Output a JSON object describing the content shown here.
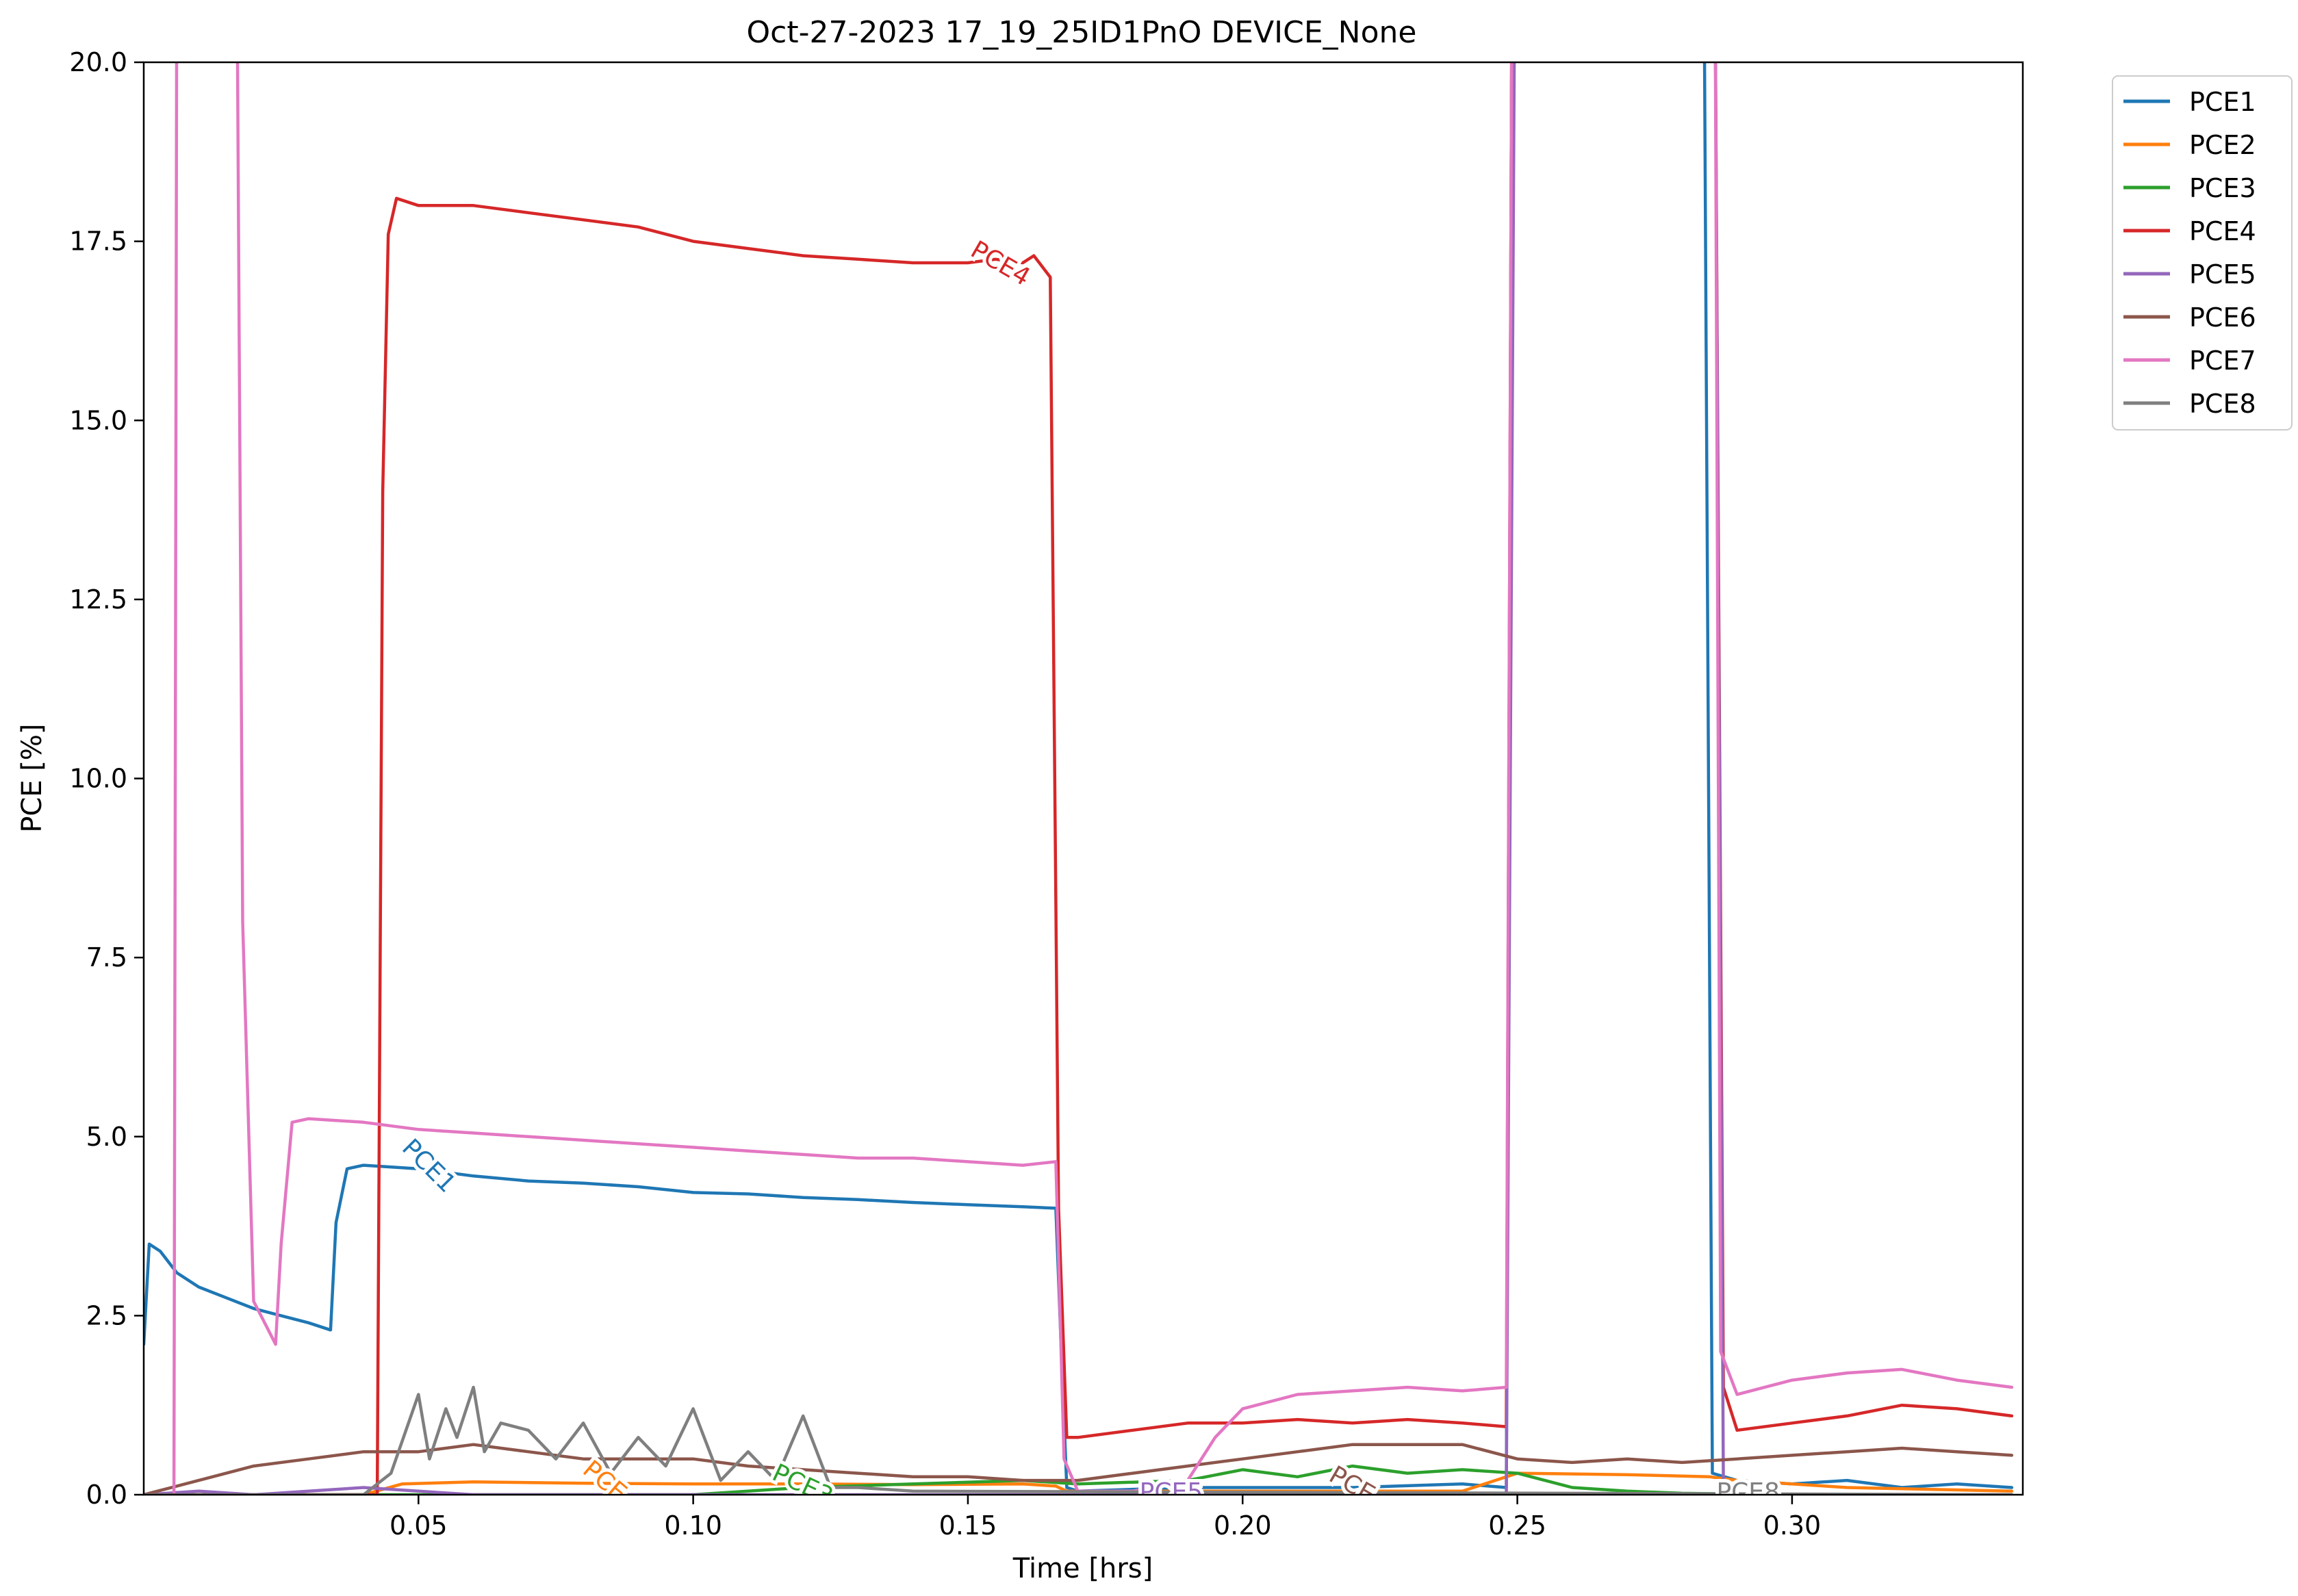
{
  "chart_data": {
    "type": "line",
    "title": "Oct-27-2023 17_19_25ID1PnO DEVICE_None",
    "xlabel": "Time [hrs]",
    "ylabel": "PCE [%]",
    "xlim": [
      0.0,
      0.342
    ],
    "ylim": [
      0,
      20
    ],
    "x_ticks": [
      0.05,
      0.1,
      0.15,
      0.2,
      0.25,
      0.3
    ],
    "x_tick_labels": [
      "0.05",
      "0.10",
      "0.15",
      "0.20",
      "0.25",
      "0.30"
    ],
    "y_ticks": [
      0,
      2.5,
      5,
      7.5,
      10,
      12.5,
      15,
      17.5,
      20
    ],
    "y_tick_labels": [
      "0.0",
      "2.5",
      "5.0",
      "7.5",
      "10.0",
      "12.5",
      "15.0",
      "17.5",
      "20.0"
    ],
    "grid": false,
    "legend_position": "outside-top-right",
    "series": [
      {
        "name": "PCE1",
        "color": "#1f77b4",
        "x": [
          0.0,
          0.001,
          0.003,
          0.006,
          0.01,
          0.015,
          0.02,
          0.025,
          0.03,
          0.034,
          0.035,
          0.037,
          0.04,
          0.05,
          0.06,
          0.07,
          0.08,
          0.09,
          0.1,
          0.11,
          0.12,
          0.13,
          0.14,
          0.15,
          0.16,
          0.166,
          0.167,
          0.168,
          0.17,
          0.19,
          0.22,
          0.24,
          0.248,
          0.249,
          0.25,
          0.26,
          0.27,
          0.284,
          0.2855,
          0.29,
          0.3,
          0.31,
          0.32,
          0.33,
          0.34
        ],
        "y": [
          2.1,
          3.5,
          3.4,
          3.1,
          2.9,
          2.75,
          2.6,
          2.5,
          2.4,
          2.3,
          3.8,
          4.55,
          4.6,
          4.55,
          4.45,
          4.38,
          4.35,
          4.3,
          4.22,
          4.2,
          4.15,
          4.12,
          4.08,
          4.05,
          4.02,
          4.0,
          2.0,
          0.1,
          0.05,
          0.1,
          0.1,
          0.15,
          0.1,
          21,
          21,
          21,
          21,
          21,
          0.3,
          0.2,
          0.15,
          0.2,
          0.1,
          0.15,
          0.1
        ]
      },
      {
        "name": "PCE2",
        "color": "#ff7f0e",
        "x": [
          0.0,
          0.04,
          0.047,
          0.06,
          0.08,
          0.1,
          0.12,
          0.14,
          0.16,
          0.166,
          0.168,
          0.2,
          0.24,
          0.25,
          0.27,
          0.285,
          0.29,
          0.31,
          0.34
        ],
        "y": [
          0.0,
          0.0,
          0.15,
          0.18,
          0.16,
          0.15,
          0.15,
          0.14,
          0.15,
          0.12,
          0.05,
          0.05,
          0.05,
          0.3,
          0.28,
          0.25,
          0.2,
          0.1,
          0.05
        ]
      },
      {
        "name": "PCE3",
        "color": "#2ca02c",
        "x": [
          0.0,
          0.1,
          0.12,
          0.14,
          0.16,
          0.17,
          0.19,
          0.2,
          0.21,
          0.22,
          0.23,
          0.24,
          0.25,
          0.26,
          0.27,
          0.28,
          0.3,
          0.34
        ],
        "y": [
          0.0,
          0.0,
          0.1,
          0.15,
          0.2,
          0.15,
          0.2,
          0.35,
          0.25,
          0.4,
          0.3,
          0.35,
          0.3,
          0.1,
          0.05,
          0.02,
          0.0,
          0.0
        ]
      },
      {
        "name": "PCE4",
        "color": "#d62728",
        "x": [
          0.0,
          0.0425,
          0.0435,
          0.0445,
          0.046,
          0.05,
          0.06,
          0.07,
          0.08,
          0.09,
          0.1,
          0.11,
          0.12,
          0.13,
          0.14,
          0.15,
          0.155,
          0.16,
          0.162,
          0.165,
          0.1665,
          0.168,
          0.17,
          0.18,
          0.19,
          0.2,
          0.21,
          0.22,
          0.23,
          0.24,
          0.248,
          0.249,
          0.25,
          0.26,
          0.27,
          0.286,
          0.2875,
          0.29,
          0.3,
          0.31,
          0.32,
          0.33,
          0.34
        ],
        "y": [
          0.0,
          0.0,
          14.0,
          17.6,
          18.1,
          18.0,
          18.0,
          17.9,
          17.8,
          17.7,
          17.5,
          17.4,
          17.3,
          17.25,
          17.2,
          17.2,
          17.25,
          17.2,
          17.3,
          17.0,
          4.0,
          0.8,
          0.8,
          0.9,
          1.0,
          1.0,
          1.05,
          1.0,
          1.05,
          1.0,
          0.95,
          21,
          21,
          21,
          21,
          21,
          1.5,
          0.9,
          1.0,
          1.1,
          1.25,
          1.2,
          1.1
        ]
      },
      {
        "name": "PCE5",
        "color": "#9467bd",
        "x": [
          0.0,
          0.01,
          0.02,
          0.03,
          0.04,
          0.05,
          0.06,
          0.166,
          0.17,
          0.248,
          0.2495,
          0.25,
          0.26,
          0.27,
          0.286,
          0.2875,
          0.29,
          0.34
        ],
        "y": [
          0.0,
          0.05,
          0.0,
          0.05,
          0.1,
          0.05,
          0.0,
          0.0,
          0.0,
          0.0,
          21,
          21,
          21,
          21,
          21,
          0.1,
          0.0,
          0.0
        ]
      },
      {
        "name": "PCE6",
        "color": "#8c564b",
        "x": [
          0.0,
          0.01,
          0.02,
          0.03,
          0.04,
          0.05,
          0.06,
          0.07,
          0.08,
          0.09,
          0.1,
          0.11,
          0.12,
          0.13,
          0.14,
          0.15,
          0.16,
          0.17,
          0.18,
          0.19,
          0.2,
          0.21,
          0.22,
          0.23,
          0.24,
          0.25,
          0.26,
          0.27,
          0.28,
          0.29,
          0.3,
          0.31,
          0.32,
          0.33,
          0.34
        ],
        "y": [
          0.0,
          0.2,
          0.4,
          0.5,
          0.6,
          0.6,
          0.7,
          0.6,
          0.5,
          0.5,
          0.5,
          0.4,
          0.35,
          0.3,
          0.25,
          0.25,
          0.2,
          0.2,
          0.3,
          0.4,
          0.5,
          0.6,
          0.7,
          0.7,
          0.7,
          0.5,
          0.45,
          0.5,
          0.45,
          0.5,
          0.55,
          0.6,
          0.65,
          0.6,
          0.55
        ]
      },
      {
        "name": "PCE7",
        "color": "#e377c2",
        "x": [
          0.0,
          0.0055,
          0.006,
          0.0075,
          0.017,
          0.018,
          0.02,
          0.022,
          0.024,
          0.025,
          0.027,
          0.03,
          0.04,
          0.05,
          0.06,
          0.07,
          0.08,
          0.09,
          0.1,
          0.11,
          0.12,
          0.13,
          0.14,
          0.15,
          0.16,
          0.166,
          0.1675,
          0.17,
          0.18,
          0.19,
          0.195,
          0.2,
          0.21,
          0.22,
          0.23,
          0.24,
          0.248,
          0.249,
          0.25,
          0.26,
          0.27,
          0.286,
          0.287,
          0.29,
          0.3,
          0.31,
          0.32,
          0.33,
          0.34
        ],
        "y": [
          0.0,
          0.0,
          21,
          21,
          21,
          8.0,
          2.7,
          2.4,
          2.1,
          3.5,
          5.2,
          5.25,
          5.2,
          5.1,
          5.05,
          5.0,
          4.95,
          4.9,
          4.85,
          4.8,
          4.75,
          4.7,
          4.7,
          4.65,
          4.6,
          4.65,
          0.5,
          0.05,
          0.05,
          0.2,
          0.8,
          1.2,
          1.4,
          1.45,
          1.5,
          1.45,
          1.5,
          21,
          21,
          21,
          21,
          21,
          2.0,
          1.4,
          1.6,
          1.7,
          1.75,
          1.6,
          1.5
        ]
      },
      {
        "name": "PCE8",
        "color": "#7f7f7f",
        "x": [
          0.0,
          0.04,
          0.045,
          0.05,
          0.052,
          0.055,
          0.057,
          0.06,
          0.062,
          0.065,
          0.07,
          0.075,
          0.08,
          0.085,
          0.09,
          0.095,
          0.1,
          0.105,
          0.11,
          0.115,
          0.12,
          0.125,
          0.13,
          0.14,
          0.34
        ],
        "y": [
          0.0,
          0.0,
          0.3,
          1.4,
          0.5,
          1.2,
          0.8,
          1.5,
          0.6,
          1.0,
          0.9,
          0.5,
          1.0,
          0.3,
          0.8,
          0.4,
          1.2,
          0.2,
          0.6,
          0.2,
          1.1,
          0.1,
          0.1,
          0.05,
          0.0
        ]
      }
    ],
    "inline_labels": [
      {
        "text": "PCE1",
        "series": "PCE1",
        "x": 0.052,
        "y": 4.6,
        "angle": 45
      },
      {
        "text": "PCE4",
        "series": "PCE4",
        "x": 0.156,
        "y": 17.2,
        "angle": 30
      },
      {
        "text": "PCE",
        "series": "PCE2",
        "x": 0.084,
        "y": 0.2,
        "angle": 40
      },
      {
        "text": "PCE3",
        "series": "PCE3",
        "x": 0.12,
        "y": 0.15,
        "angle": 25
      },
      {
        "text": "PCE5",
        "series": "PCE5",
        "x": 0.187,
        "y": 0.05,
        "angle": 0
      },
      {
        "text": "PCE",
        "series": "PCE6",
        "x": 0.22,
        "y": 0.15,
        "angle": 30
      },
      {
        "text": "PCE8",
        "series": "PCE8",
        "x": 0.292,
        "y": 0.05,
        "angle": 0
      }
    ]
  }
}
